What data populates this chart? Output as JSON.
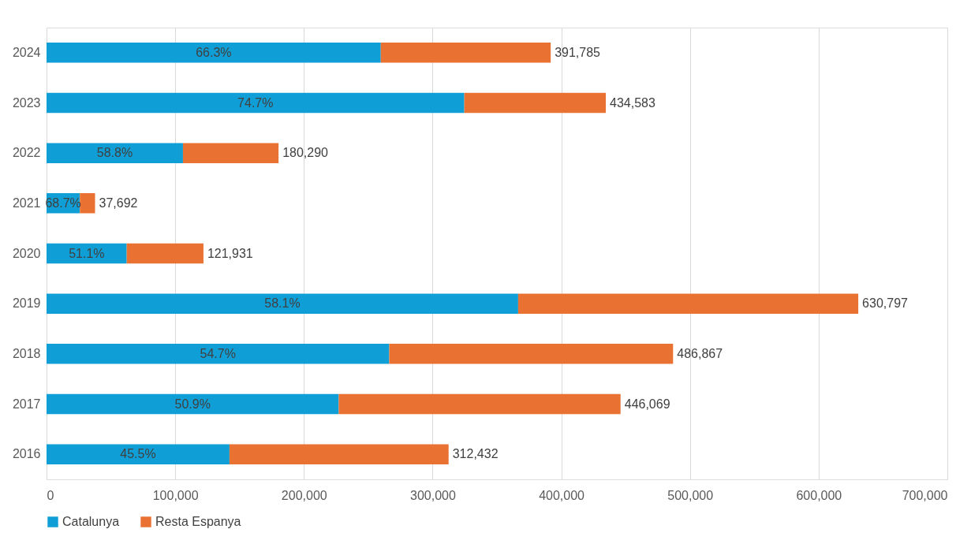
{
  "chart_data": {
    "type": "bar",
    "orientation": "horizontal",
    "stacked": true,
    "categories": [
      "2024",
      "2023",
      "2022",
      "2021",
      "2020",
      "2019",
      "2018",
      "2017",
      "2016"
    ],
    "series": [
      {
        "name": "Catalunya",
        "color": "#0f9ed5",
        "values": [
          259753,
          324634,
          106011,
          25894,
          62307,
          366493,
          266316,
          227049,
          142157
        ]
      },
      {
        "name": "Resta Espanya",
        "color": "#e97132",
        "values": [
          132032,
          109949,
          74279,
          11798,
          59624,
          264304,
          220551,
          219020,
          170275
        ]
      }
    ],
    "annotations": [
      "66.3%",
      "74.7%",
      "58.8%",
      "68.7%",
      "51.1%",
      "58.1%",
      "54.7%",
      "50.9%",
      "45.5%"
    ],
    "totals": [
      "391,785",
      "434,583",
      "180,290",
      "37,692",
      "121,931",
      "630,797",
      "486,867",
      "446,069",
      "312,432"
    ],
    "xlim": [
      0,
      700000
    ],
    "xticks": [
      0,
      {
        "value": 100000,
        "label": "100,000"
      },
      {
        "value": 200000,
        "label": "200,000"
      },
      {
        "value": 300000,
        "label": "300,000"
      },
      {
        "value": 400000,
        "label": "400,000"
      },
      {
        "value": 500000,
        "label": "500,000"
      },
      {
        "value": 600000,
        "label": "600,000"
      },
      {
        "value": 700000,
        "label": "700,000"
      }
    ],
    "grid": "x",
    "legend": "bottom"
  }
}
